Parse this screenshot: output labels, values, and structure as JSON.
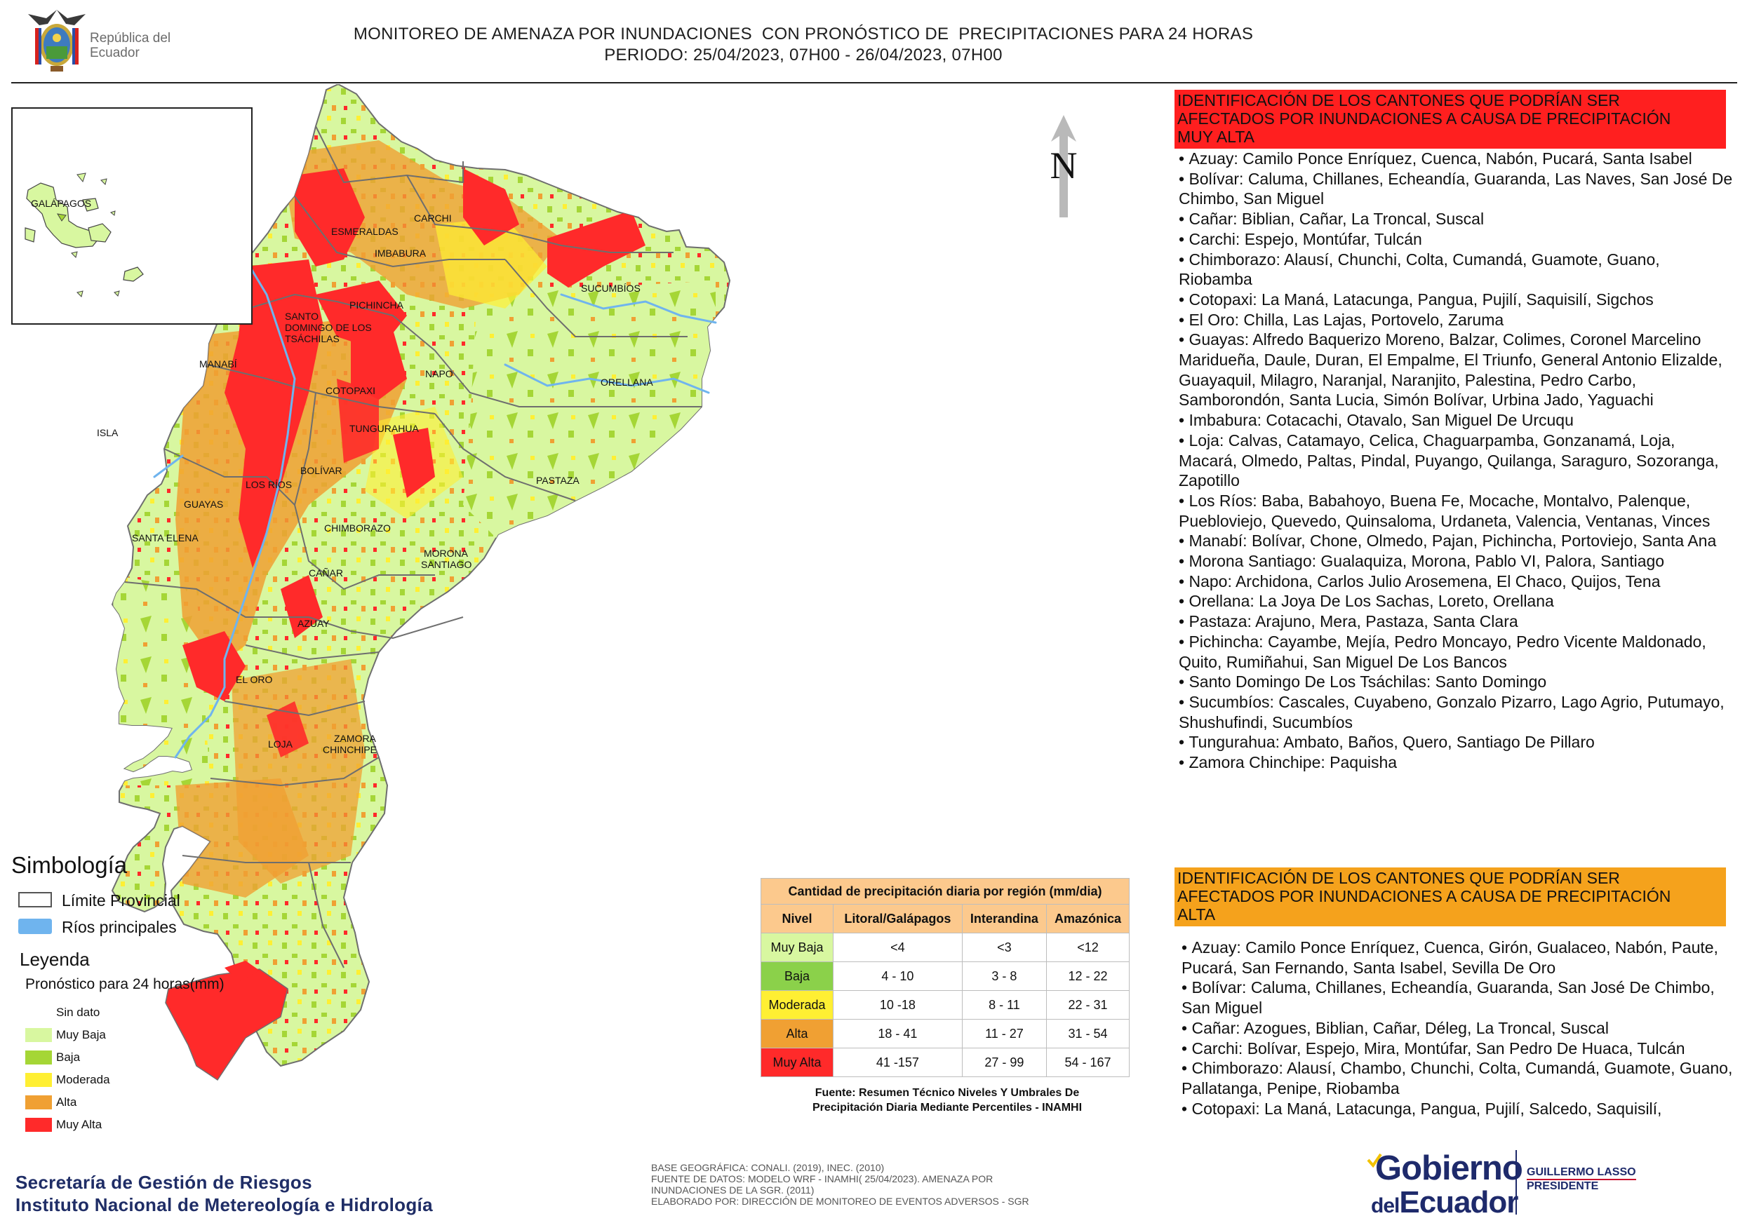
{
  "header": {
    "institution": "República del Ecuador",
    "title_line1": "MONITOREO DE AMENAZA POR INUNDACIONES  CON PRONÓSTICO DE  PRECIPITACIONES PARA 24 HORAS",
    "title_line2": "PERIODO: 25/04/2023, 07H00 - 26/04/2023, 07H00"
  },
  "map": {
    "north_label": "N",
    "inset_label": "GALÁPAGOS",
    "province_labels": [
      "CARCHI",
      "ESMERALDAS",
      "IMBABURA",
      "SUCUMBÍOS",
      "PICHINCHA",
      "SANTO",
      "DOMINGO DE LOS",
      "TSÁCHILAS",
      "MANABÍ",
      "NAPO",
      "ORELLANA",
      "COTOPAXI",
      "TUNGURAHUA",
      "ISLA",
      "BOLÍVAR",
      "LOS RÍOS",
      "PASTAZA",
      "GUAYAS",
      "CHIMBORAZO",
      "SANTA ELENA",
      "MORONA",
      "SANTIAGO",
      "CAÑAR",
      "AZUAY",
      "EL ORO",
      "LOJA",
      "ZAMORA",
      "CHINCHIPE"
    ],
    "colors": {
      "sea": "#ffffff",
      "land_low": "#d8f7a0",
      "baja": "#a5d636",
      "moderada": "#ffef33",
      "alta": "#f0a033",
      "muy_alta": "#ff2a2a",
      "river": "#6fb4ee",
      "border": "#6e6e6e"
    }
  },
  "right_panel": {
    "muy_alta_header": [
      "IDENTIFICACIÓN DE LOS CANTONES QUE PODRÍAN SER",
      "AFECTADOS POR INUNDACIONES  A CAUSA DE PRECIPITACIÓN",
      "MUY ALTA"
    ],
    "muy_alta_list": [
      "Azuay: Camilo Ponce Enríquez, Cuenca, Nabón, Pucará, Santa Isabel",
      "Bolívar: Caluma, Chillanes, Echeandía, Guaranda, Las Naves, San José De Chimbo, San Miguel",
      "Cañar: Biblian, Cañar, La Troncal, Suscal",
      "Carchi: Espejo, Montúfar, Tulcán",
      "Chimborazo: Alausí, Chunchi, Colta, Cumandá, Guamote, Guano, Riobamba",
      "Cotopaxi: La Maná, Latacunga, Pangua, Pujilí, Saquisilí, Sigchos",
      "El Oro: Chilla, Las Lajas, Portovelo, Zaruma",
      "Guayas: Alfredo Baquerizo Moreno, Balzar, Colimes, Coronel Marcelino Maridueña, Daule, Duran, El Empalme, El Triunfo, General Antonio Elizalde, Guayaquil, Milagro, Naranjal, Naranjito, Palestina, Pedro Carbo, Samborondón, Santa Lucia, Simón Bolívar, Urbina Jado, Yaguachi",
      "Imbabura: Cotacachi, Otavalo, San Miguel De Urcuqu",
      "Loja: Calvas, Catamayo, Celica, Chaguarpamba, Gonzanamá, Loja, Macará, Olmedo, Paltas, Pindal, Puyango, Quilanga, Saraguro, Sozoranga, Zapotillo",
      "Los Ríos: Baba, Babahoyo, Buena Fe, Mocache, Montalvo, Palenque, Puebloviejo, Quevedo, Quinsaloma, Urdaneta, Valencia, Ventanas, Vinces",
      "Manabí: Bolívar, Chone, Olmedo, Pajan, Pichincha, Portoviejo, Santa Ana",
      "Morona Santiago: Gualaquiza, Morona, Pablo VI, Palora, Santiago",
      "Napo: Archidona, Carlos Julio Arosemena, El Chaco, Quijos, Tena",
      "Orellana: La Joya De Los Sachas, Loreto, Orellana",
      "Pastaza: Arajuno, Mera, Pastaza, Santa Clara",
      "Pichincha: Cayambe, Mejía, Pedro Moncayo, Pedro Vicente Maldonado, Quito, Rumiñahui, San Miguel De Los Bancos",
      "Santo Domingo De Los Tsáchilas: Santo Domingo",
      "Sucumbíos: Cascales, Cuyabeno, Gonzalo Pizarro, Lago Agrio, Putumayo, Shushufindi, Sucumbíos",
      "Tungurahua: Ambato, Baños, Quero, Santiago De Pillaro",
      "Zamora Chinchipe: Paquisha"
    ],
    "alta_header": [
      "IDENTIFICACIÓN DE LOS CANTONES QUE  PODRÍAN SER",
      "AFECTADOS POR INUNDACIONES  A CAUSA DE PRECIPITACIÓN",
      "ALTA"
    ],
    "alta_list": [
      "Azuay: Camilo Ponce Enríquez, Cuenca, Girón, Gualaceo, Nabón, Paute, Pucará, San Fernando, Santa Isabel, Sevilla De Oro",
      "Bolívar: Caluma, Chillanes, Echeandía, Guaranda, San José De Chimbo, San Miguel",
      "Cañar: Azogues, Biblian, Cañar, Déleg, La Troncal, Suscal",
      "Carchi: Bolívar, Espejo, Mira, Montúfar, San Pedro De Huaca, Tulcán",
      "Chimborazo: Alausí, Chambo, Chunchi, Colta, Cumandá, Guamote, Guano, Pallatanga, Penipe, Riobamba",
      "Cotopaxi: La Maná, Latacunga, Pangua, Pujilí, Salcedo, Saquisilí,"
    ]
  },
  "symbology": {
    "title": "Simbología",
    "provincial_limit": "Límite Provincial",
    "rivers": "Ríos principales",
    "legend_title": "Leyenda",
    "legend_subtitle": "Pronóstico para 24 horas(mm)",
    "levels": [
      {
        "label": "Sin dato",
        "color": "#ffffff"
      },
      {
        "label": " Muy Baja",
        "color": "#d8f7a0"
      },
      {
        "label": "Baja",
        "color": "#a5d636"
      },
      {
        "label": "Moderada",
        "color": "#ffef33"
      },
      {
        "label": "Alta",
        "color": "#f0a033"
      },
      {
        "label": "Muy Alta",
        "color": "#ff2a2a"
      }
    ]
  },
  "precip_table": {
    "caption": "Cantidad de precipitación diaria por región (mm/dia)",
    "headers": [
      "Nivel",
      "Litoral/Galápagos",
      "Interandina",
      "Amazónica"
    ],
    "rows": [
      {
        "nivel": "Muy Baja",
        "color": "#d8f7a0",
        "v": [
          "<4",
          "<3",
          "<12"
        ]
      },
      {
        "nivel": "Baja",
        "color": "#8bd14a",
        "v": [
          "4 - 10",
          "3 - 8",
          "12 - 22"
        ]
      },
      {
        "nivel": "Moderada",
        "color": "#ffef33",
        "v": [
          "10 -18",
          "8 - 11",
          "22 - 31"
        ]
      },
      {
        "nivel": "Alta",
        "color": "#f0a033",
        "v": [
          "18 - 41",
          "11 - 27",
          "31 - 54"
        ]
      },
      {
        "nivel": "Muy Alta",
        "color": "#ff2a2a",
        "v": [
          "41 -157",
          "27 - 99",
          "54 - 167"
        ]
      }
    ],
    "source_line1": "Fuente: Resumen Técnico Niveles Y Umbrales De",
    "source_line2": "Precipitación Diaria Mediante Percentiles - INAMHI"
  },
  "footer": {
    "org_line1": "Secretaría de Gestión de Riesgos",
    "org_line2": "Instituto Nacional de Metereología e Hidrología",
    "credits": [
      "BASE GEOGRÁFICA: CONALI. (2019), INEC. (2010)",
      "FUENTE DE DATOS: MODELO WRF - INAMHI( 25/04/2023).  AMENAZA POR",
      "INUNDACIONES DE LA SGR. (2011)",
      "ELABORADO POR: DIRECCIÓN DE MONITOREO DE EVENTOS ADVERSOS - SGR"
    ],
    "gov_logo_line1": "Gobierno",
    "gov_logo_del": "del",
    "gov_logo_line2": "Ecuador",
    "president_line1": "GUILLERMO LASSO",
    "president_line2": "PRESIDENTE"
  }
}
